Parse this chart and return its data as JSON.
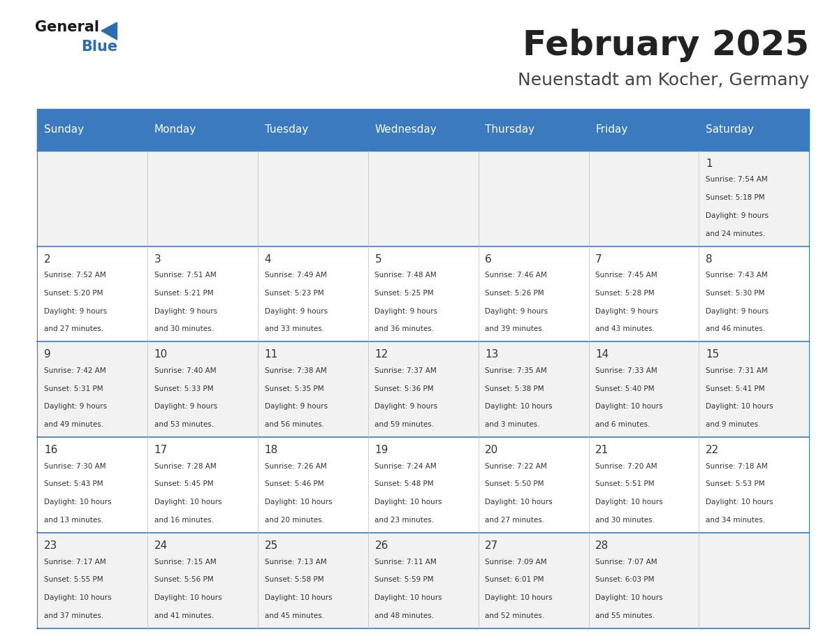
{
  "title": "February 2025",
  "subtitle": "Neuenstadt am Kocher, Germany",
  "days_of_week": [
    "Sunday",
    "Monday",
    "Tuesday",
    "Wednesday",
    "Thursday",
    "Friday",
    "Saturday"
  ],
  "header_bg": "#3a7abf",
  "header_text_color": "#ffffff",
  "row_bg_odd": "#f2f2f2",
  "row_bg_even": "#ffffff",
  "separator_color": "#3a7abf",
  "day_number_color": "#333333",
  "cell_text_color": "#333333",
  "title_color": "#222222",
  "subtitle_color": "#444444",
  "general_color": "#222222",
  "blue_color": "#2a6db5",
  "calendar_data": [
    [
      null,
      null,
      null,
      null,
      null,
      null,
      {
        "day": 1,
        "sunrise": "7:54 AM",
        "sunset": "5:18 PM",
        "daylight": "9 hours\nand 24 minutes."
      }
    ],
    [
      {
        "day": 2,
        "sunrise": "7:52 AM",
        "sunset": "5:20 PM",
        "daylight": "9 hours\nand 27 minutes."
      },
      {
        "day": 3,
        "sunrise": "7:51 AM",
        "sunset": "5:21 PM",
        "daylight": "9 hours\nand 30 minutes."
      },
      {
        "day": 4,
        "sunrise": "7:49 AM",
        "sunset": "5:23 PM",
        "daylight": "9 hours\nand 33 minutes."
      },
      {
        "day": 5,
        "sunrise": "7:48 AM",
        "sunset": "5:25 PM",
        "daylight": "9 hours\nand 36 minutes."
      },
      {
        "day": 6,
        "sunrise": "7:46 AM",
        "sunset": "5:26 PM",
        "daylight": "9 hours\nand 39 minutes."
      },
      {
        "day": 7,
        "sunrise": "7:45 AM",
        "sunset": "5:28 PM",
        "daylight": "9 hours\nand 43 minutes."
      },
      {
        "day": 8,
        "sunrise": "7:43 AM",
        "sunset": "5:30 PM",
        "daylight": "9 hours\nand 46 minutes."
      }
    ],
    [
      {
        "day": 9,
        "sunrise": "7:42 AM",
        "sunset": "5:31 PM",
        "daylight": "9 hours\nand 49 minutes."
      },
      {
        "day": 10,
        "sunrise": "7:40 AM",
        "sunset": "5:33 PM",
        "daylight": "9 hours\nand 53 minutes."
      },
      {
        "day": 11,
        "sunrise": "7:38 AM",
        "sunset": "5:35 PM",
        "daylight": "9 hours\nand 56 minutes."
      },
      {
        "day": 12,
        "sunrise": "7:37 AM",
        "sunset": "5:36 PM",
        "daylight": "9 hours\nand 59 minutes."
      },
      {
        "day": 13,
        "sunrise": "7:35 AM",
        "sunset": "5:38 PM",
        "daylight": "10 hours\nand 3 minutes."
      },
      {
        "day": 14,
        "sunrise": "7:33 AM",
        "sunset": "5:40 PM",
        "daylight": "10 hours\nand 6 minutes."
      },
      {
        "day": 15,
        "sunrise": "7:31 AM",
        "sunset": "5:41 PM",
        "daylight": "10 hours\nand 9 minutes."
      }
    ],
    [
      {
        "day": 16,
        "sunrise": "7:30 AM",
        "sunset": "5:43 PM",
        "daylight": "10 hours\nand 13 minutes."
      },
      {
        "day": 17,
        "sunrise": "7:28 AM",
        "sunset": "5:45 PM",
        "daylight": "10 hours\nand 16 minutes."
      },
      {
        "day": 18,
        "sunrise": "7:26 AM",
        "sunset": "5:46 PM",
        "daylight": "10 hours\nand 20 minutes."
      },
      {
        "day": 19,
        "sunrise": "7:24 AM",
        "sunset": "5:48 PM",
        "daylight": "10 hours\nand 23 minutes."
      },
      {
        "day": 20,
        "sunrise": "7:22 AM",
        "sunset": "5:50 PM",
        "daylight": "10 hours\nand 27 minutes."
      },
      {
        "day": 21,
        "sunrise": "7:20 AM",
        "sunset": "5:51 PM",
        "daylight": "10 hours\nand 30 minutes."
      },
      {
        "day": 22,
        "sunrise": "7:18 AM",
        "sunset": "5:53 PM",
        "daylight": "10 hours\nand 34 minutes."
      }
    ],
    [
      {
        "day": 23,
        "sunrise": "7:17 AM",
        "sunset": "5:55 PM",
        "daylight": "10 hours\nand 37 minutes."
      },
      {
        "day": 24,
        "sunrise": "7:15 AM",
        "sunset": "5:56 PM",
        "daylight": "10 hours\nand 41 minutes."
      },
      {
        "day": 25,
        "sunrise": "7:13 AM",
        "sunset": "5:58 PM",
        "daylight": "10 hours\nand 45 minutes."
      },
      {
        "day": 26,
        "sunrise": "7:11 AM",
        "sunset": "5:59 PM",
        "daylight": "10 hours\nand 48 minutes."
      },
      {
        "day": 27,
        "sunrise": "7:09 AM",
        "sunset": "6:01 PM",
        "daylight": "10 hours\nand 52 minutes."
      },
      {
        "day": 28,
        "sunrise": "7:07 AM",
        "sunset": "6:03 PM",
        "daylight": "10 hours\nand 55 minutes."
      },
      null
    ]
  ]
}
